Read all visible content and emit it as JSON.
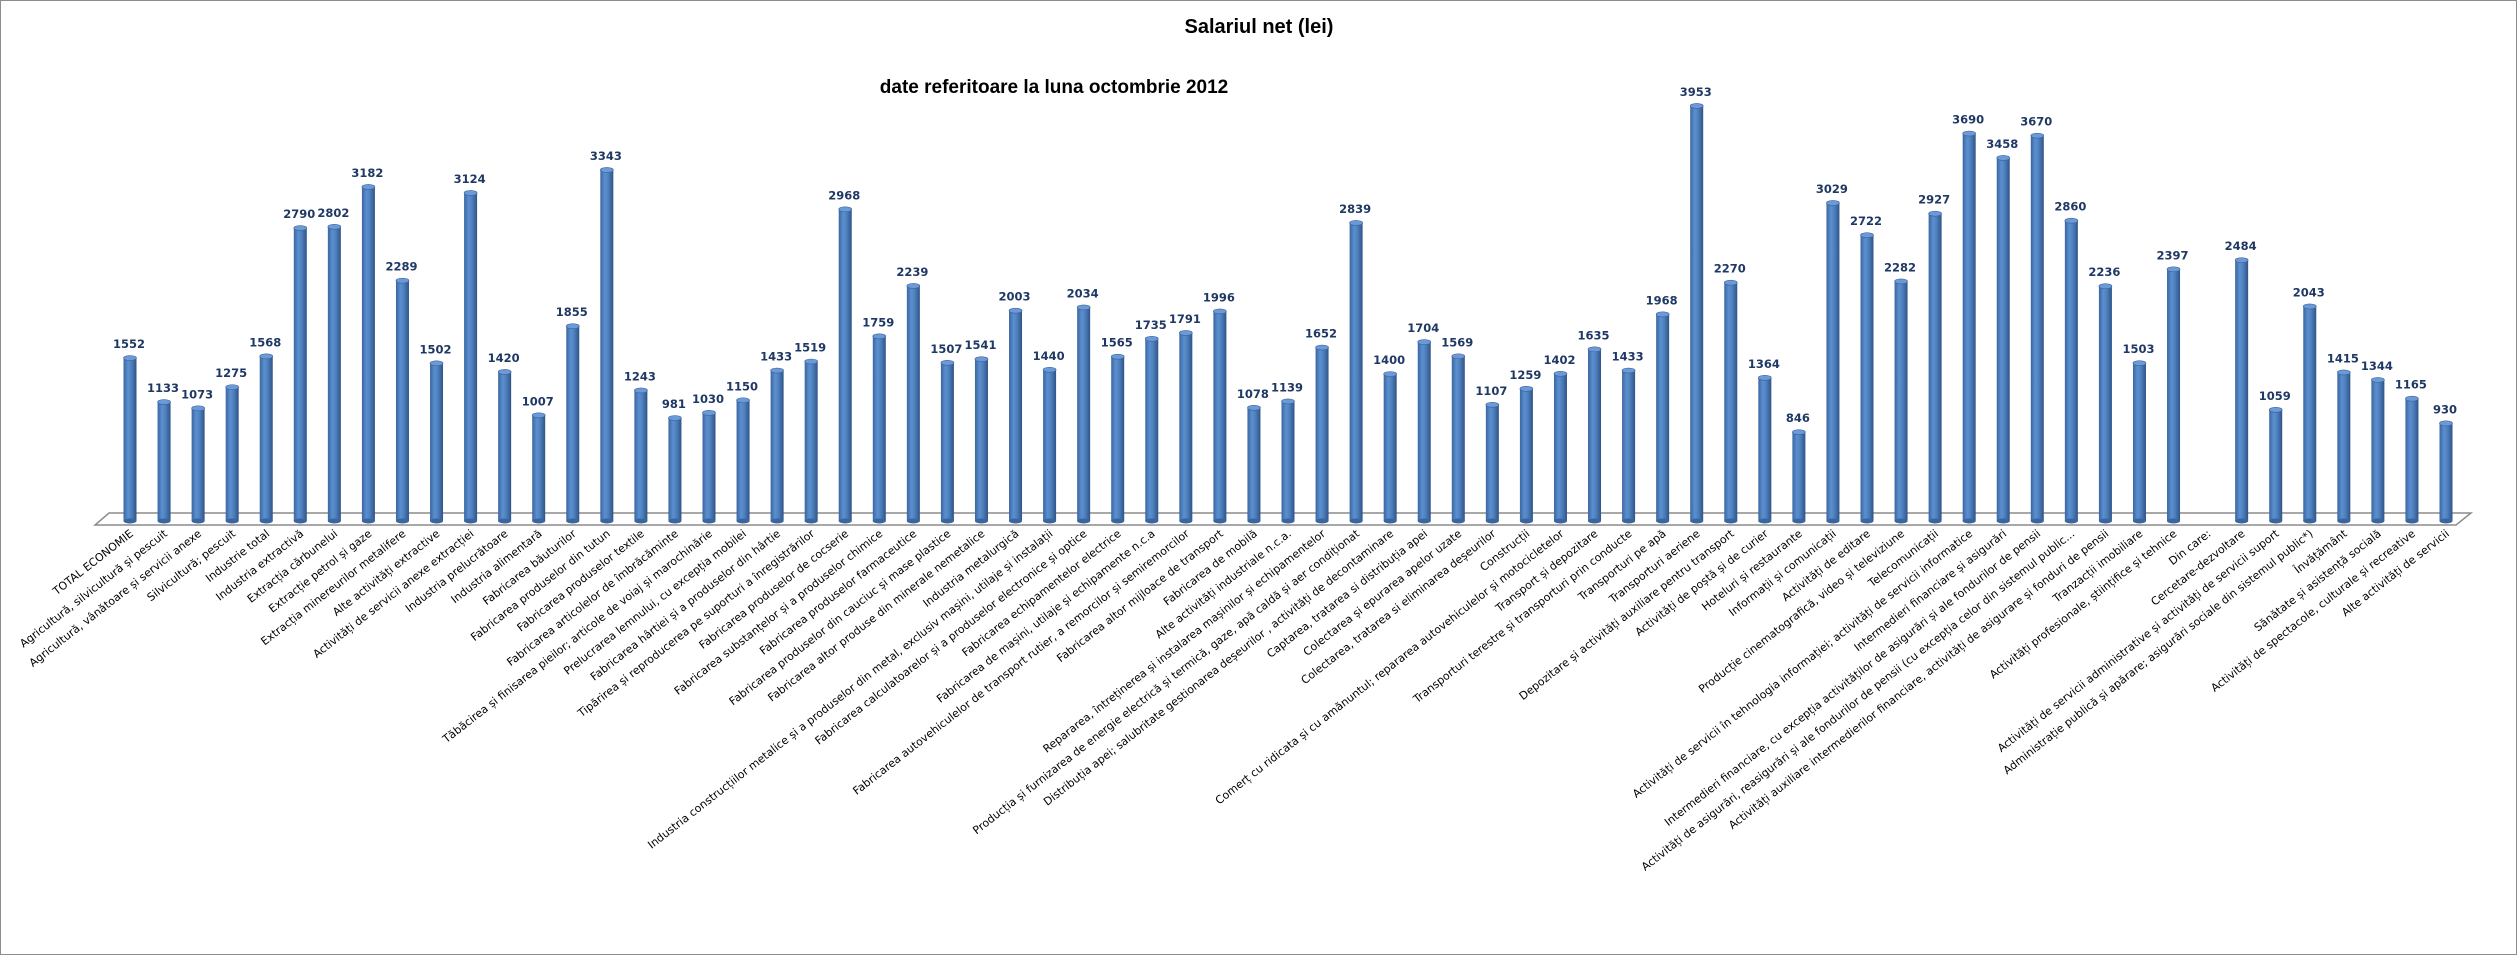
{
  "chart_data": {
    "type": "bar",
    "title": "Salariul net (lei)",
    "subtitle": "date referitoare la luna octombrie 2012",
    "xlabel": "",
    "ylabel": "",
    "ylim": [
      0,
      4000
    ],
    "grid": false,
    "legend": "none",
    "bar_color": "#4f81bd",
    "label_color": "#1f3864",
    "categories": [
      "TOTAL ECONOMIE",
      "Agricultură, silvicultură și pescuit",
      "Agricultură, vânătoare și servicii anexe",
      "Silvicultură; pescuit",
      "Industrie total",
      "Industria extractivă",
      "Extracția cărbunelui",
      "Extracție petrol și gaze",
      "Extracția minereurilor metalifere",
      "Alte activități extractive",
      "Activități de servicii anexe extracției",
      "Industria prelucrătoare",
      "Industria alimentară",
      "Fabricarea băuturilor",
      "Fabricarea produselor din tutun",
      "Fabricarea produselor textile",
      "Fabricarea articolelor de îmbrăcăminte",
      "Tăbăcirea și finisarea pieilor; articole de voiaj și marochinărie",
      "Prelucrarea lemnului,  cu excepția mobilei",
      "Fabricarea hârtiei și a produselor din hârtie",
      "Tipărirea și reproducerea pe suporturi a înregistrărilor",
      "Fabricarea produselor de cocserie",
      "Fabricarea substanțelor și a produselor chimice",
      "Fabricarea produselor farmaceutice",
      "Fabricarea produselor din cauciuc și mase plastice",
      "Fabricarea altor produse din minerale nemetalice",
      "Industria metalurgică",
      "Industria construcțiilor metalice și a produselor din metal, exclusiv mașini, utilaje și instalații",
      "Fabricarea calculatoarelor și a produselor electronice și optice",
      "Fabricarea echipamentelor  electrice",
      "Fabricarea de mașini, utilaje și echipamente n.c.a",
      "Fabricarea autovehiculelor de transport rutier, a remorcilor și semiremorcilor",
      "Fabricarea altor mijloace de transport",
      "Fabricarea de mobilă",
      "Alte activități industriale n.c.a.",
      "Repararea, întreținerea și instalarea mașinilor și echipamentelor",
      "Producția și furnizarea de energie electrică și termică, gaze, apă caldă și aer condiționat",
      "Distribuția apei; salubritate gestionarea deșeurilor , activități de decontaminare",
      "Captarea, tratarea si distribuția apei",
      "Colectarea și epurarea apelor uzate",
      "Colectarea, tratarea si eliminarea deșeurilor",
      "Construcții",
      "Comerț cu ridicata și cu amănuntul; repararea autovehiculelor și motocicletelor",
      "Transport și depozitare",
      "Transporturi terestre și transporturi prin conducte",
      "Transporturi pe apă",
      "Transporturi aeriene",
      "Depozitare și activități auxiliare pentru transport",
      "Activități de poștă și de curier",
      "Hoteluri și restaurante",
      "Informații și comunicații",
      "Activități de editare",
      "Producție cinematografică, video și  televiziune",
      "Telecomunicații",
      "Activități de servicii în tehnologia informației; activități de servicii informatice",
      "Intermedieri financiare și asigurări",
      "Intermedieri financiare, cu excepția activităților de asigurări și ale fondurilor de pensii",
      "Activități de asigurări, reasigurări și ale fondurilor de pensii (cu excepția celor din sistemul public...",
      "Activități auxiliare intermedierilor financiare, activități de asigurare și fonduri de pensii",
      "Tranzacții imobiliare",
      "Activități profesionale, științifice și tehnice",
      "Din care:",
      "Cercetare-dezvoltare",
      "Activități de servicii administrative și activități de servicii suport",
      "Administrație publică și apărare; asigurări sociale din sistemul public*)",
      "Învățământ",
      "Sănătate și asistență socială",
      "Activități de spectacole, culturale și recreative",
      "Alte activități de servicii"
    ],
    "values": [
      1552,
      1133,
      1073,
      1275,
      1568,
      2790,
      2802,
      3182,
      2289,
      1502,
      3124,
      1420,
      1007,
      1855,
      3343,
      1243,
      981,
      1030,
      1150,
      1433,
      1519,
      2968,
      1759,
      2239,
      1507,
      1541,
      2003,
      1440,
      2034,
      1565,
      1735,
      1791,
      1996,
      1078,
      1139,
      1652,
      2839,
      1400,
      1704,
      1569,
      1107,
      1259,
      1402,
      1635,
      1433,
      1968,
      3953,
      2270,
      1364,
      846,
      3029,
      2722,
      2282,
      2927,
      3690,
      3458,
      3670,
      2860,
      2236,
      1503,
      2397,
      null,
      2484,
      1059,
      2043,
      1415,
      1344,
      1165,
      930
    ]
  }
}
